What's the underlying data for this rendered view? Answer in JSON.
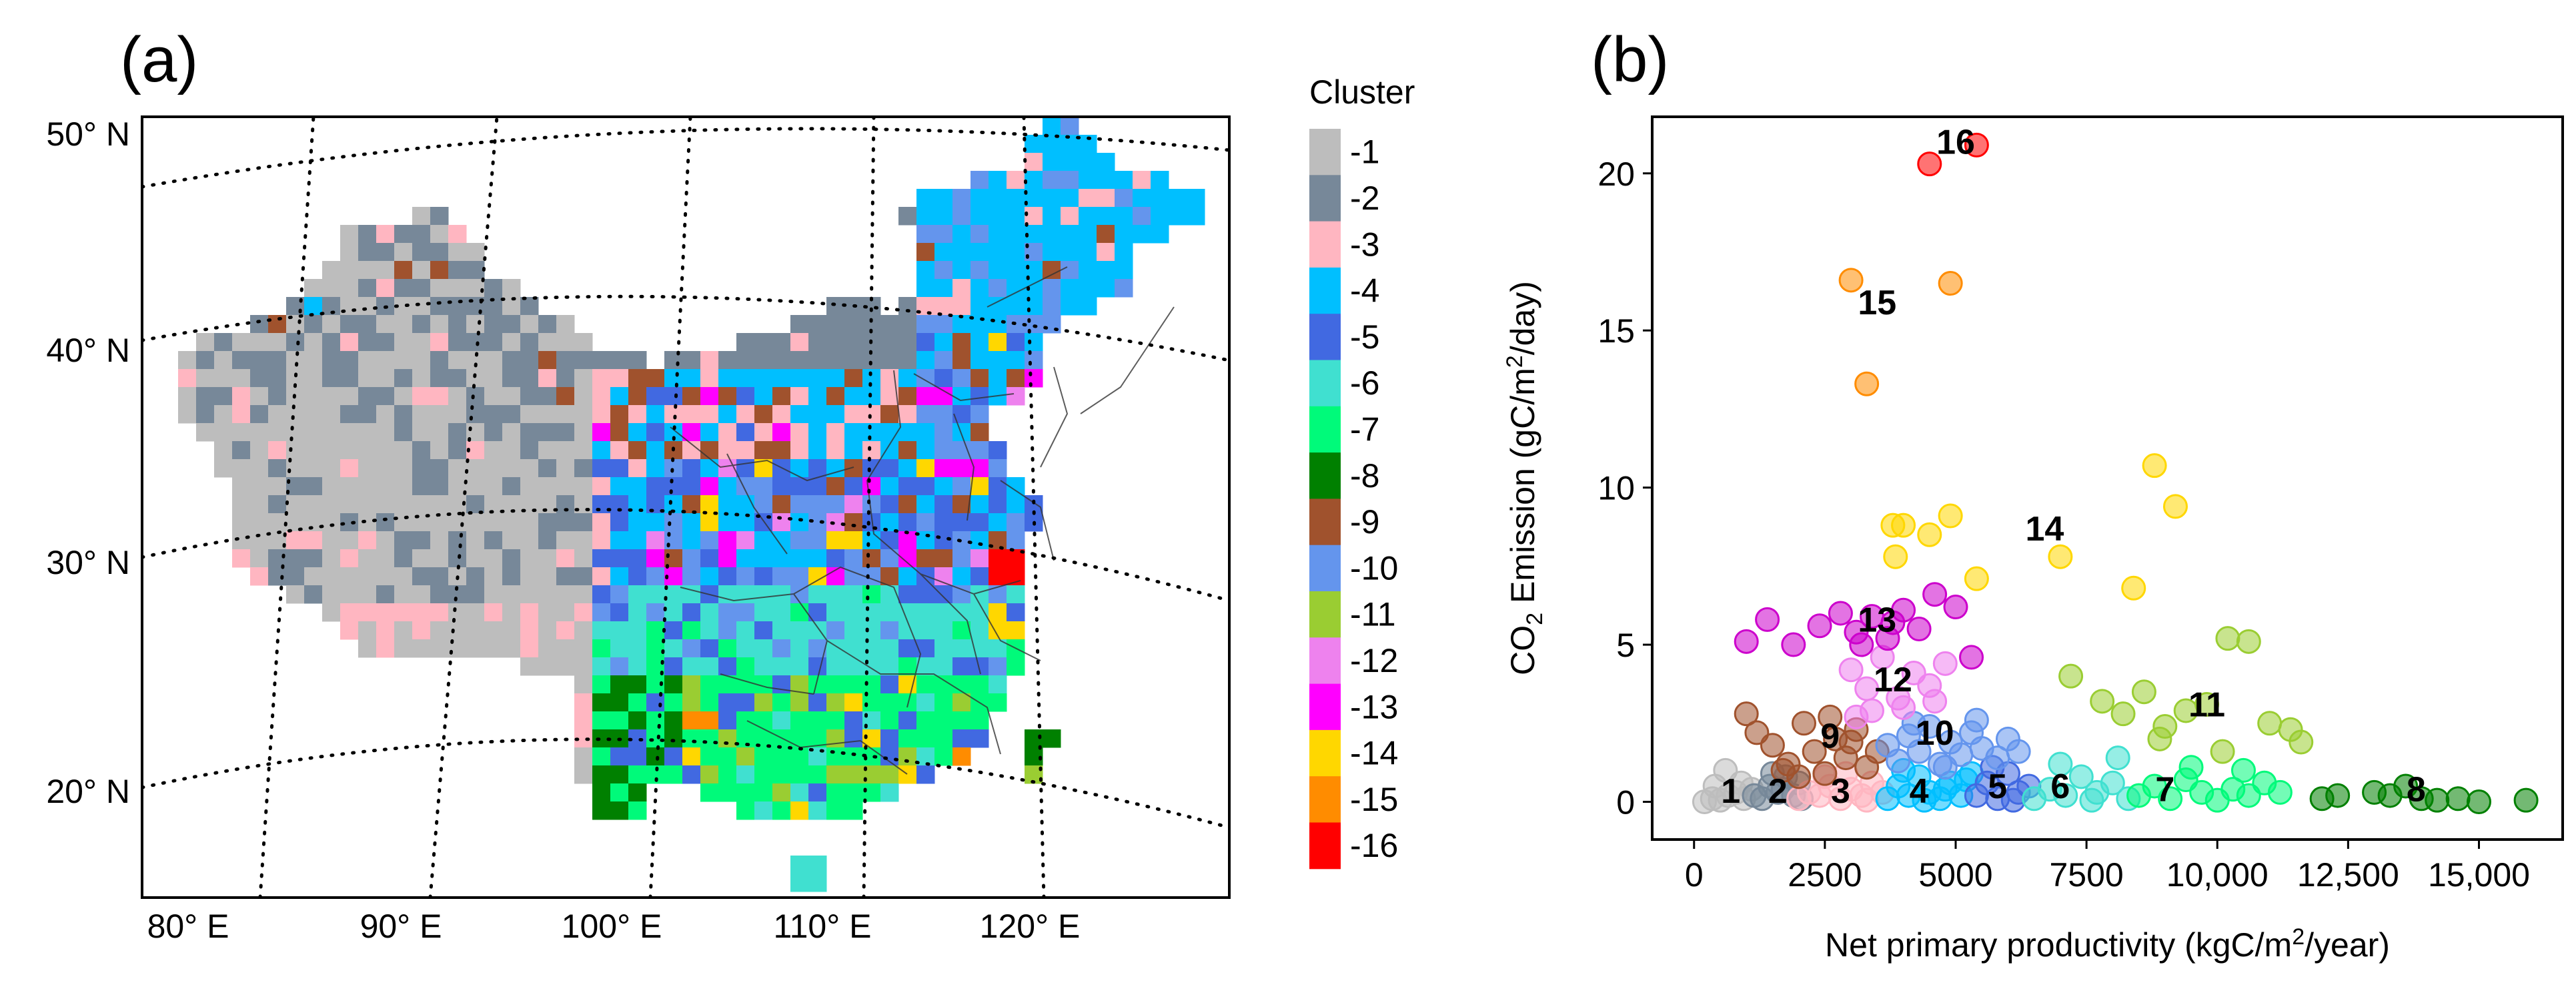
{
  "panel_a": {
    "label": "(a)",
    "lat_labels": [
      "50° N",
      "40° N",
      "30° N",
      "20° N"
    ],
    "lon_labels": [
      "80° E",
      "90° E",
      "100° E",
      "110° E",
      "120° E"
    ]
  },
  "legend": {
    "title": "Cluster",
    "entries": [
      {
        "label": "-1",
        "color": "#bdbdbd"
      },
      {
        "label": "-2",
        "color": "#778899"
      },
      {
        "label": "-3",
        "color": "#ffb6c1"
      },
      {
        "label": "-4",
        "color": "#00bfff"
      },
      {
        "label": "-5",
        "color": "#4169e1"
      },
      {
        "label": "-6",
        "color": "#40e0d0"
      },
      {
        "label": "-7",
        "color": "#00fa7a"
      },
      {
        "label": "-8",
        "color": "#008000"
      },
      {
        "label": "-9",
        "color": "#a0522d"
      },
      {
        "label": "-10",
        "color": "#6495ed"
      },
      {
        "label": "-11",
        "color": "#9acd32"
      },
      {
        "label": "-12",
        "color": "#ee82ee"
      },
      {
        "label": "-13",
        "color": "#ff00ff"
      },
      {
        "label": "-14",
        "color": "#ffd700"
      },
      {
        "label": "-15",
        "color": "#ff8c00"
      },
      {
        "label": "-16",
        "color": "#ff0000"
      }
    ]
  },
  "panel_b": {
    "label": "(b)"
  },
  "chart_data": {
    "type": "scatter",
    "title": "",
    "xlabel_pre": "Net primary productivity (kgC/m",
    "xlabel_sup": "2",
    "xlabel_post": "/year)",
    "ylabel_a": "CO",
    "ylabel_sub": "2",
    "ylabel_b": " Emission (gC/m",
    "ylabel_sup": "2",
    "ylabel_c": "/day)",
    "xlim": [
      -800,
      16600
    ],
    "ylim": [
      -1.2,
      21.8
    ],
    "x_ticks": [
      0,
      2500,
      5000,
      7500,
      10000,
      12500,
      15000
    ],
    "x_tick_labels": [
      "0",
      "2500",
      "5000",
      "7500",
      "10,000",
      "12,500",
      "15,000"
    ],
    "y_ticks": [
      0,
      5,
      10,
      15,
      20
    ],
    "y_tick_labels": [
      "0",
      "5",
      "10",
      "15",
      "20"
    ],
    "series": [
      {
        "name": "1",
        "color": "#bdbdbd",
        "label_at": [
          700,
          0.35
        ],
        "x": [
          200,
          350,
          500,
          650,
          800,
          950,
          1100,
          600,
          400,
          900
        ],
        "y": [
          0,
          0.1,
          0.05,
          0.2,
          0.3,
          0.1,
          0.4,
          1.0,
          0.5,
          0.6
        ]
      },
      {
        "name": "2",
        "color": "#778899",
        "label_at": [
          1600,
          0.35
        ],
        "x": [
          1150,
          1300,
          1450,
          1600,
          1750,
          1900,
          2050,
          1500,
          1700,
          2000
        ],
        "y": [
          0.2,
          0.1,
          0.5,
          0.3,
          0.8,
          0.2,
          0.1,
          0.9,
          0.4,
          0.6
        ]
      },
      {
        "name": "3",
        "color": "#ffb6c1",
        "label_at": [
          2800,
          0.35
        ],
        "x": [
          2000,
          2200,
          2400,
          2600,
          2800,
          3000,
          3200,
          3400,
          3600,
          2500,
          2900,
          3300
        ],
        "y": [
          0.1,
          0.3,
          0.2,
          0.5,
          0.1,
          0.4,
          0.2,
          0.6,
          0.3,
          0.8,
          0.9,
          0.05
        ]
      },
      {
        "name": "4",
        "color": "#00bfff",
        "label_at": [
          4300,
          0.35
        ],
        "x": [
          3700,
          3900,
          4100,
          4300,
          4500,
          4700,
          4900,
          5100,
          5300,
          4000,
          4400,
          4800,
          5200
        ],
        "y": [
          0.1,
          0.5,
          0.2,
          0.8,
          0.3,
          0.1,
          0.6,
          0.2,
          0.9,
          1.0,
          0.05,
          0.4,
          0.7
        ]
      },
      {
        "name": "5",
        "color": "#4169e1",
        "label_at": [
          5800,
          0.5
        ],
        "x": [
          5400,
          5600,
          5800,
          6000,
          6200,
          6400,
          5700,
          6100
        ],
        "y": [
          0.2,
          0.6,
          0.1,
          0.9,
          0.3,
          0.5,
          1.1,
          0.05
        ]
      },
      {
        "name": "6",
        "color": "#40e0d0",
        "label_at": [
          7000,
          0.5
        ],
        "x": [
          6500,
          6800,
          7100,
          7400,
          7700,
          8000,
          8300,
          7000,
          7600,
          8100
        ],
        "y": [
          0.1,
          0.4,
          0.2,
          0.8,
          0.3,
          0.6,
          0.1,
          1.2,
          0.05,
          1.4
        ]
      },
      {
        "name": "7",
        "color": "#00fa7a",
        "label_at": [
          9000,
          0.4
        ],
        "x": [
          8500,
          8800,
          9100,
          9400,
          9700,
          10000,
          10300,
          10600,
          10900,
          11200,
          9500,
          10500
        ],
        "y": [
          0.2,
          0.5,
          0.1,
          0.7,
          0.3,
          0.05,
          0.4,
          0.2,
          0.6,
          0.3,
          1.1,
          1.0
        ]
      },
      {
        "name": "8",
        "color": "#008000",
        "label_at": [
          13800,
          0.4
        ],
        "x": [
          12000,
          12300,
          13000,
          13300,
          13600,
          13900,
          14200,
          14600,
          15000,
          15900
        ],
        "y": [
          0.1,
          0.2,
          0.3,
          0.2,
          0.5,
          0.1,
          0.05,
          0.1,
          0.0,
          0.05
        ]
      },
      {
        "name": "9",
        "color": "#a0522d",
        "label_at": [
          2600,
          2.1
        ],
        "x": [
          1000,
          1200,
          1500,
          1800,
          2100,
          2300,
          2500,
          2700,
          2900,
          3100,
          3300,
          3500,
          2000,
          2600,
          3000,
          1700
        ],
        "y": [
          2.8,
          2.2,
          1.8,
          1.2,
          2.5,
          1.6,
          0.9,
          2.0,
          1.4,
          2.3,
          1.1,
          1.6,
          0.8,
          2.7,
          1.9,
          1.0
        ]
      },
      {
        "name": "10",
        "color": "#6495ed",
        "label_at": [
          4600,
          2.2
        ],
        "x": [
          3700,
          3900,
          4100,
          4300,
          4500,
          4700,
          4900,
          5100,
          5300,
          5500,
          5800,
          6000,
          4200,
          4800,
          5400,
          6200
        ],
        "y": [
          1.8,
          1.3,
          2.1,
          1.6,
          2.4,
          1.2,
          1.9,
          1.5,
          2.2,
          1.7,
          1.4,
          2.0,
          2.5,
          1.1,
          2.6,
          1.6
        ]
      },
      {
        "name": "11",
        "color": "#9acd32",
        "label_at": [
          9800,
          3.1
        ],
        "x": [
          7200,
          7800,
          8200,
          8600,
          9000,
          9400,
          9800,
          10200,
          10600,
          11000,
          11400,
          11600,
          8900,
          10100
        ],
        "y": [
          4.0,
          3.2,
          2.8,
          3.5,
          2.4,
          2.9,
          3.1,
          5.2,
          5.1,
          2.5,
          2.3,
          1.9,
          2.0,
          1.6
        ]
      },
      {
        "name": "12",
        "color": "#ee82ee",
        "label_at": [
          3800,
          3.9
        ],
        "x": [
          3000,
          3300,
          3600,
          3900,
          4200,
          4500,
          4800,
          3400,
          4000,
          4600,
          3100
        ],
        "y": [
          4.2,
          3.6,
          4.6,
          3.3,
          4.1,
          3.7,
          4.4,
          2.9,
          3.0,
          3.2,
          2.7
        ]
      },
      {
        "name": "13",
        "color": "#cc00cc",
        "label_at": [
          3500,
          5.8
        ],
        "x": [
          1000,
          1400,
          1900,
          2400,
          2800,
          3100,
          3400,
          3700,
          4000,
          4300,
          4600,
          5000,
          5300,
          3200,
          3800
        ],
        "y": [
          5.1,
          5.8,
          5.0,
          5.6,
          6.0,
          5.4,
          5.9,
          5.2,
          6.1,
          5.5,
          6.6,
          6.2,
          4.6,
          5.0,
          5.7
        ]
      },
      {
        "name": "14",
        "color": "#ffd700",
        "label_at": [
          6700,
          8.7
        ],
        "x": [
          3800,
          4000,
          4500,
          4900,
          5400,
          7000,
          8400,
          8800,
          9200,
          3850
        ],
        "y": [
          8.8,
          8.8,
          8.5,
          9.1,
          7.1,
          7.8,
          6.8,
          10.7,
          9.4,
          7.8
        ]
      },
      {
        "name": "15",
        "color": "#ff8c00",
        "label_at": [
          3500,
          15.9
        ],
        "x": [
          3000,
          3300,
          4900
        ],
        "y": [
          16.6,
          13.3,
          16.5
        ]
      },
      {
        "name": "16",
        "color": "#ff0000",
        "label_at": [
          5000,
          21.0
        ],
        "x": [
          4500,
          5400
        ],
        "y": [
          20.3,
          20.9
        ]
      }
    ]
  }
}
